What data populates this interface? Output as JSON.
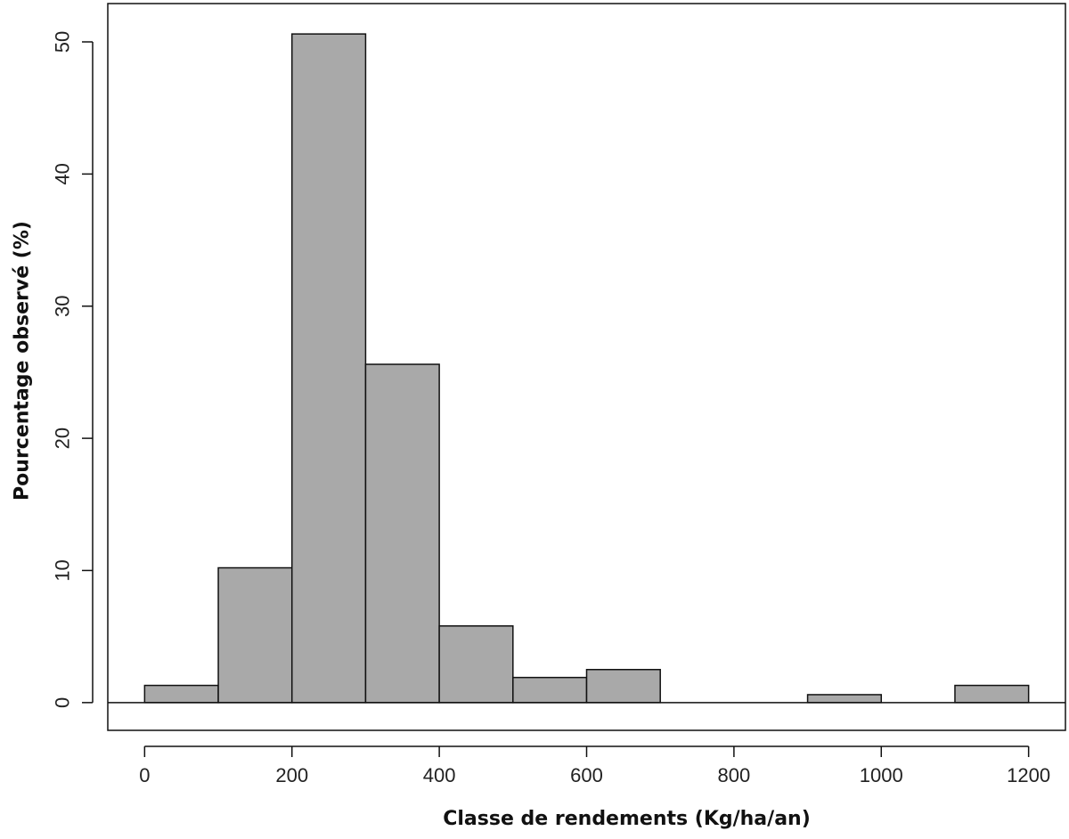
{
  "chart_data": {
    "type": "bar",
    "title": "",
    "xlabel": "Classe de rendements (Kg/ha/an)",
    "ylabel": "Pourcentage observé (%)",
    "bins": [
      {
        "start": 0,
        "end": 100,
        "value": 1.3
      },
      {
        "start": 100,
        "end": 200,
        "value": 10.2
      },
      {
        "start": 200,
        "end": 300,
        "value": 50.6
      },
      {
        "start": 300,
        "end": 400,
        "value": 25.6
      },
      {
        "start": 400,
        "end": 500,
        "value": 5.8
      },
      {
        "start": 500,
        "end": 600,
        "value": 1.9
      },
      {
        "start": 600,
        "end": 700,
        "value": 2.5
      },
      {
        "start": 700,
        "end": 800,
        "value": 0
      },
      {
        "start": 800,
        "end": 900,
        "value": 0
      },
      {
        "start": 900,
        "end": 1000,
        "value": 0.6
      },
      {
        "start": 1000,
        "end": 1100,
        "value": 0
      },
      {
        "start": 1100,
        "end": 1200,
        "value": 1.3
      }
    ],
    "xlim": [
      -50,
      1250
    ],
    "ylim": [
      -2.1,
      52.9
    ],
    "xticks": [
      0,
      200,
      400,
      600,
      800,
      1000,
      1200
    ],
    "yticks": [
      0,
      10,
      20,
      30,
      40,
      50
    ],
    "bar_color": "#a9a9a9",
    "baseline": 0,
    "grid": false,
    "legend": "none"
  }
}
